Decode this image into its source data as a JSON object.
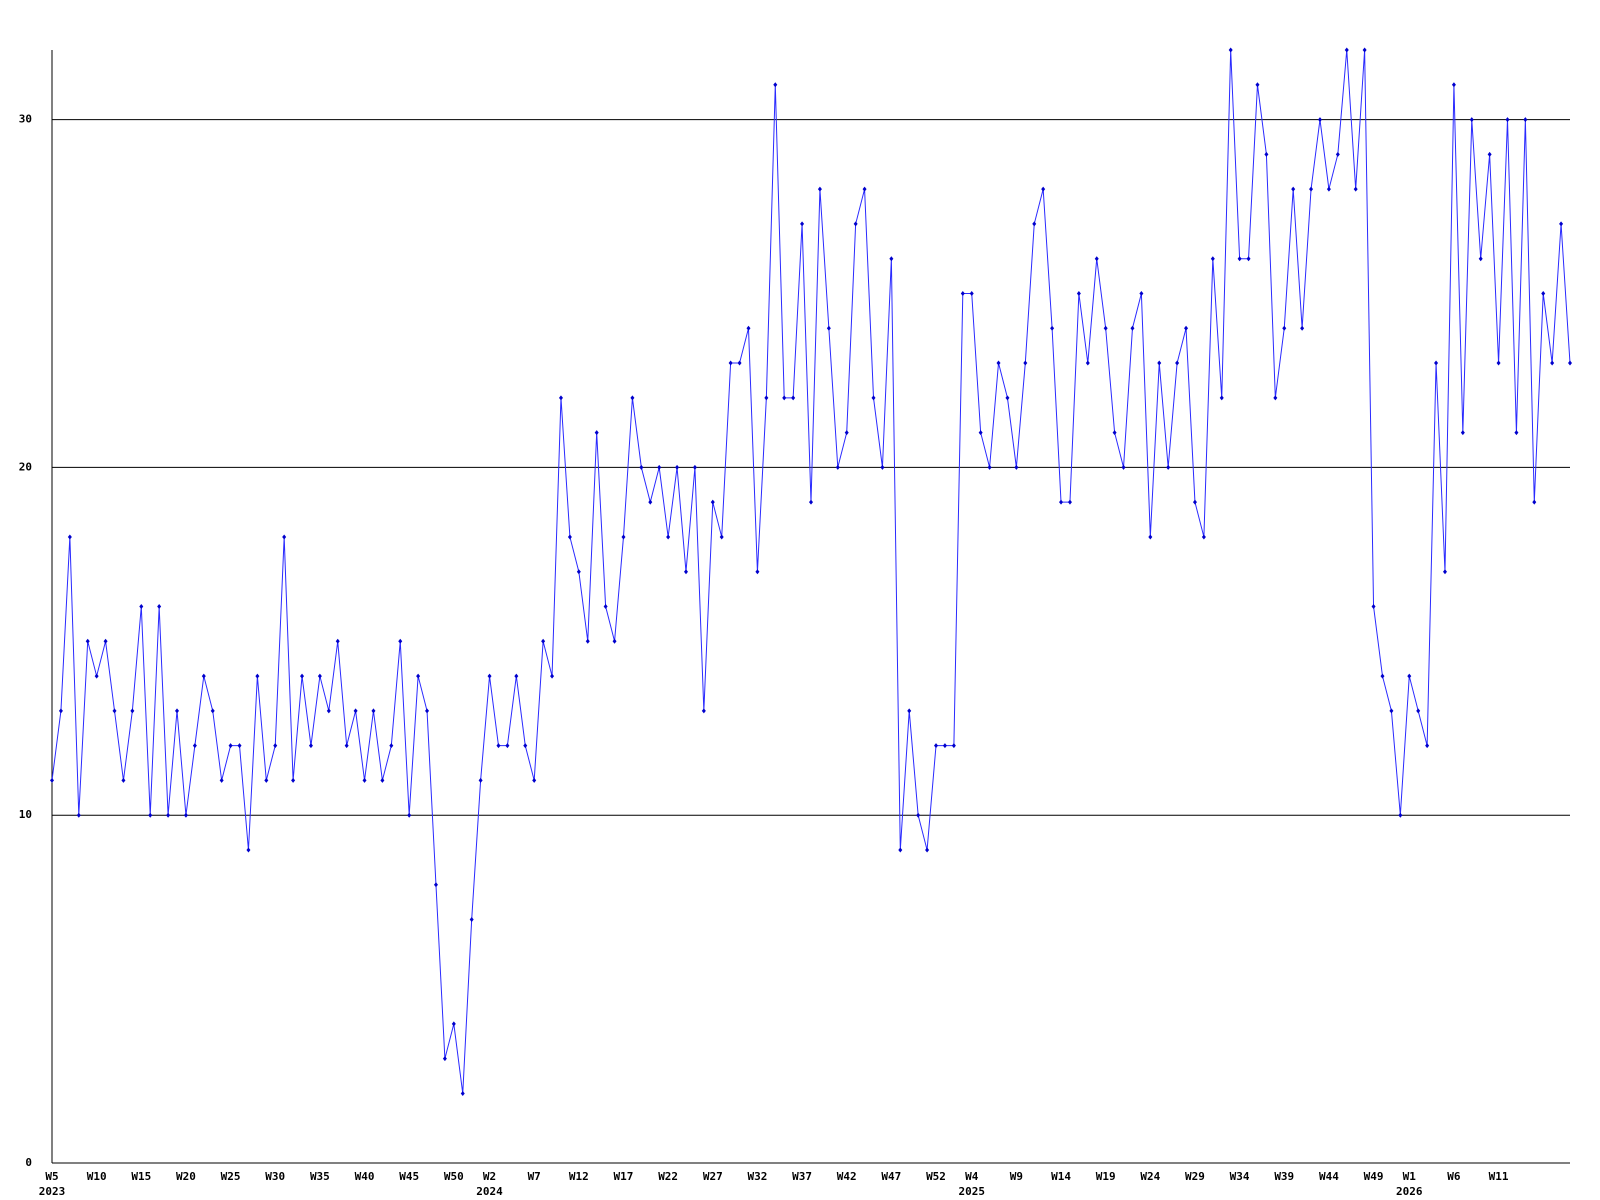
{
  "chart_data": {
    "type": "line",
    "categories": [
      "W5",
      null,
      null,
      null,
      null,
      "W10",
      null,
      null,
      null,
      null,
      "W15",
      null,
      null,
      null,
      null,
      "W20",
      null,
      null,
      null,
      null,
      "W25",
      null,
      null,
      null,
      null,
      "W30",
      null,
      null,
      null,
      null,
      "W35",
      null,
      null,
      null,
      null,
      "W40",
      null,
      null,
      null,
      null,
      "W45",
      null,
      null,
      null,
      null,
      "W50",
      null,
      null,
      null,
      "W2",
      null,
      null,
      null,
      null,
      "W7",
      null,
      null,
      null,
      null,
      "W12",
      null,
      null,
      null,
      null,
      "W17",
      null,
      null,
      null,
      null,
      "W22",
      null,
      null,
      null,
      null,
      "W27",
      null,
      null,
      null,
      null,
      "W32",
      null,
      null,
      null,
      null,
      "W37",
      null,
      null,
      null,
      null,
      "W42",
      null,
      null,
      null,
      null,
      "W47",
      null,
      null,
      null,
      null,
      "W52",
      null,
      null,
      null,
      "W4",
      null,
      null,
      null,
      null,
      "W9",
      null,
      null,
      null,
      null,
      "W14",
      null,
      null,
      null,
      null,
      "W19",
      null,
      null,
      null,
      null,
      "W24",
      null,
      null,
      null,
      null,
      "W29",
      null,
      null,
      null,
      null,
      "W34",
      null,
      null,
      null,
      null,
      "W39",
      null,
      null,
      null,
      null,
      "W44",
      null,
      null,
      null,
      null,
      "W49",
      null,
      null,
      null,
      "W1",
      null,
      null,
      null,
      null,
      "W6",
      null,
      null,
      null,
      null,
      "W11",
      null,
      null,
      null,
      null,
      null,
      null,
      null,
      null
    ],
    "category_years": [
      "2023",
      null,
      null,
      null,
      null,
      null,
      null,
      null,
      null,
      null,
      null,
      null,
      null,
      null,
      null,
      null,
      null,
      null,
      null,
      null,
      null,
      null,
      null,
      null,
      null,
      null,
      null,
      null,
      null,
      null,
      null,
      null,
      null,
      null,
      null,
      null,
      null,
      null,
      null,
      null,
      null,
      null,
      null,
      null,
      null,
      null,
      null,
      null,
      null,
      "2024",
      null,
      null,
      null,
      null,
      null,
      null,
      null,
      null,
      null,
      null,
      null,
      null,
      null,
      null,
      null,
      null,
      null,
      null,
      null,
      null,
      null,
      null,
      null,
      null,
      null,
      null,
      null,
      null,
      null,
      null,
      null,
      null,
      null,
      null,
      null,
      null,
      null,
      null,
      null,
      null,
      null,
      null,
      null,
      null,
      null,
      null,
      null,
      null,
      null,
      null,
      null,
      null,
      null,
      "2025",
      null,
      null,
      null,
      null,
      null,
      null,
      null,
      null,
      null,
      null,
      null,
      null,
      null,
      null,
      null,
      null,
      null,
      null,
      null,
      null,
      null,
      null,
      null,
      null,
      null,
      null,
      null,
      null,
      null,
      null,
      null,
      null,
      null,
      null,
      null,
      null,
      null,
      null,
      null,
      null,
      null,
      null,
      null,
      null,
      null,
      null,
      null,
      null,
      "2026",
      null,
      null,
      null,
      null,
      null,
      null,
      null,
      null,
      null,
      null,
      null,
      null,
      null,
      null,
      null,
      null,
      null,
      null
    ],
    "series": [
      {
        "color": "#2a2aff",
        "values": [
          11,
          13,
          18,
          10,
          15,
          14,
          15,
          13,
          11,
          13,
          16,
          10,
          16,
          10,
          13,
          10,
          12,
          14,
          13,
          11,
          12,
          12,
          9,
          14,
          11,
          12,
          18,
          11,
          14,
          12,
          14,
          13,
          15,
          12,
          13,
          11,
          13,
          11,
          12,
          15,
          10,
          14,
          13,
          8,
          3,
          4,
          2,
          7,
          11,
          14,
          12,
          12,
          14,
          12,
          11,
          15,
          14,
          22,
          18,
          17,
          15,
          21,
          16,
          15,
          18,
          22,
          20,
          19,
          20,
          18,
          20,
          17,
          20,
          13,
          19,
          18,
          23,
          23,
          24,
          17,
          22,
          31,
          22,
          22,
          27,
          19,
          28,
          24,
          20,
          21,
          27,
          28,
          22,
          20,
          26,
          9,
          13,
          10,
          9,
          12,
          12,
          12,
          25,
          25,
          21,
          20,
          23,
          22,
          20,
          23,
          27,
          28,
          24,
          19,
          19,
          25,
          23,
          26,
          24,
          21,
          20,
          24,
          25,
          18,
          23,
          20,
          23,
          24,
          19,
          18,
          26,
          22,
          32,
          26,
          26,
          31,
          29,
          22,
          24,
          28,
          24,
          28,
          30,
          28,
          29,
          32,
          28,
          32,
          16,
          14,
          13,
          10,
          14,
          13,
          12,
          23,
          17,
          31,
          21,
          30,
          26,
          29,
          23,
          30,
          21,
          30,
          19,
          25,
          23,
          27,
          23
        ]
      }
    ],
    "ylim": [
      0,
      32
    ],
    "yticks": [
      0,
      10,
      20,
      30
    ],
    "grid": true
  }
}
